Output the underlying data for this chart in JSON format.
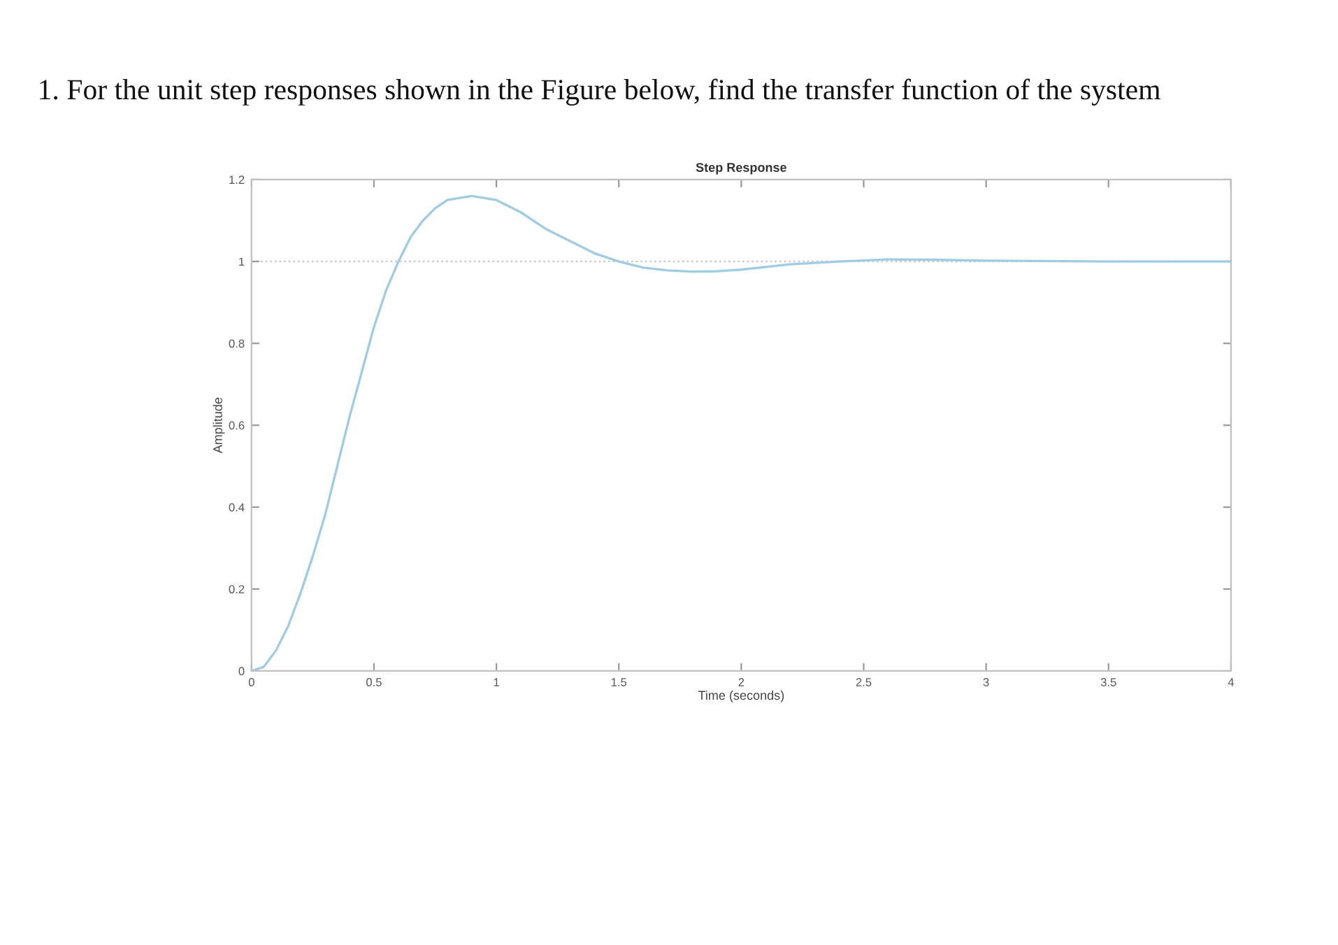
{
  "chart_data": {
    "type": "line",
    "title": "Step Response",
    "xlabel": "Time (seconds)",
    "ylabel": "Amplitude",
    "annotations": [
      "1. For the unit step responses shown in the Figure below, find the transfer function of the system"
    ],
    "x": [
      0,
      0.05,
      0.1,
      0.15,
      0.2,
      0.25,
      0.3,
      0.35,
      0.4,
      0.45,
      0.5,
      0.55,
      0.6,
      0.65,
      0.7,
      0.75,
      0.8,
      0.9,
      1.0,
      1.1,
      1.2,
      1.3,
      1.4,
      1.5,
      1.6,
      1.7,
      1.8,
      1.9,
      2.0,
      2.2,
      2.4,
      2.6,
      2.8,
      3.0,
      3.5,
      4.0
    ],
    "series": [
      {
        "color": "#9fcbe3",
        "values": [
          0,
          0.01,
          0.05,
          0.11,
          0.19,
          0.28,
          0.38,
          0.5,
          0.62,
          0.73,
          0.84,
          0.93,
          1.0,
          1.06,
          1.1,
          1.13,
          1.15,
          1.16,
          1.15,
          1.12,
          1.08,
          1.05,
          1.02,
          1.0,
          0.985,
          0.978,
          0.975,
          0.976,
          0.98,
          0.993,
          1.0,
          1.005,
          1.004,
          1.002,
          1.0,
          1.0
        ]
      }
    ],
    "xlim": [
      0,
      4
    ],
    "ylim": [
      0,
      1.2
    ],
    "xticks": [
      0,
      0.5,
      1,
      1.5,
      2,
      2.5,
      3,
      3.5,
      4
    ],
    "yticks": [
      0,
      0.2,
      0.4,
      0.6,
      0.8,
      1,
      1.2
    ],
    "ref_lines": [
      {
        "axis": "y",
        "value": 1,
        "color": "#c8c8c8",
        "line_style": "dotted"
      }
    ],
    "grid": false,
    "legend": false,
    "marker": "none",
    "line_style": "solid"
  }
}
